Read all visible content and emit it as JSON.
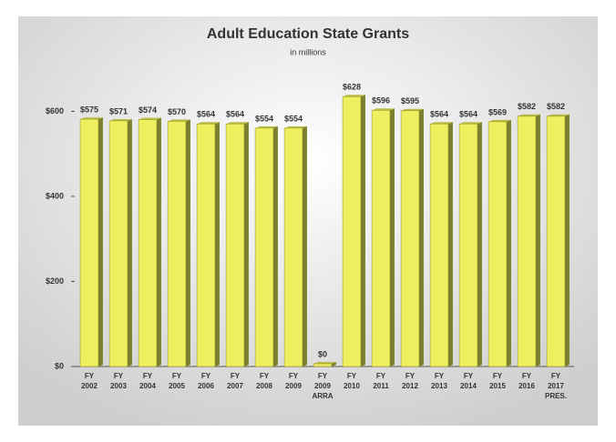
{
  "chart_data": {
    "type": "bar",
    "title": "Adult Education State Grants",
    "subtitle": "in millions",
    "categories": [
      "FY 2002",
      "FY 2003",
      "FY 2004",
      "FY 2005",
      "FY 2006",
      "FY 2007",
      "FY 2008",
      "FY 2009",
      "FY 2009 ARRA",
      "FY 2010",
      "FY 2011",
      "FY 2012",
      "FY 2013",
      "FY 2014",
      "FY 2015",
      "FY 2016",
      "FY 2017 PRES."
    ],
    "values": [
      575,
      571,
      574,
      570,
      564,
      564,
      554,
      554,
      0,
      628,
      596,
      595,
      564,
      564,
      569,
      582,
      582
    ],
    "value_labels": [
      "$575",
      "$571",
      "$574",
      "$570",
      "$564",
      "$564",
      "$554",
      "$554",
      "$0",
      "$628",
      "$596",
      "$595",
      "$564",
      "$564",
      "$569",
      "$582",
      "$582"
    ],
    "color": "#eef060",
    "ylim": [
      0,
      650
    ],
    "yticks": [
      {
        "value": 0,
        "label": "$0"
      },
      {
        "value": 200,
        "label": "$200"
      },
      {
        "value": 400,
        "label": "$400"
      },
      {
        "value": 600,
        "label": "$600"
      }
    ],
    "grid": false
  }
}
